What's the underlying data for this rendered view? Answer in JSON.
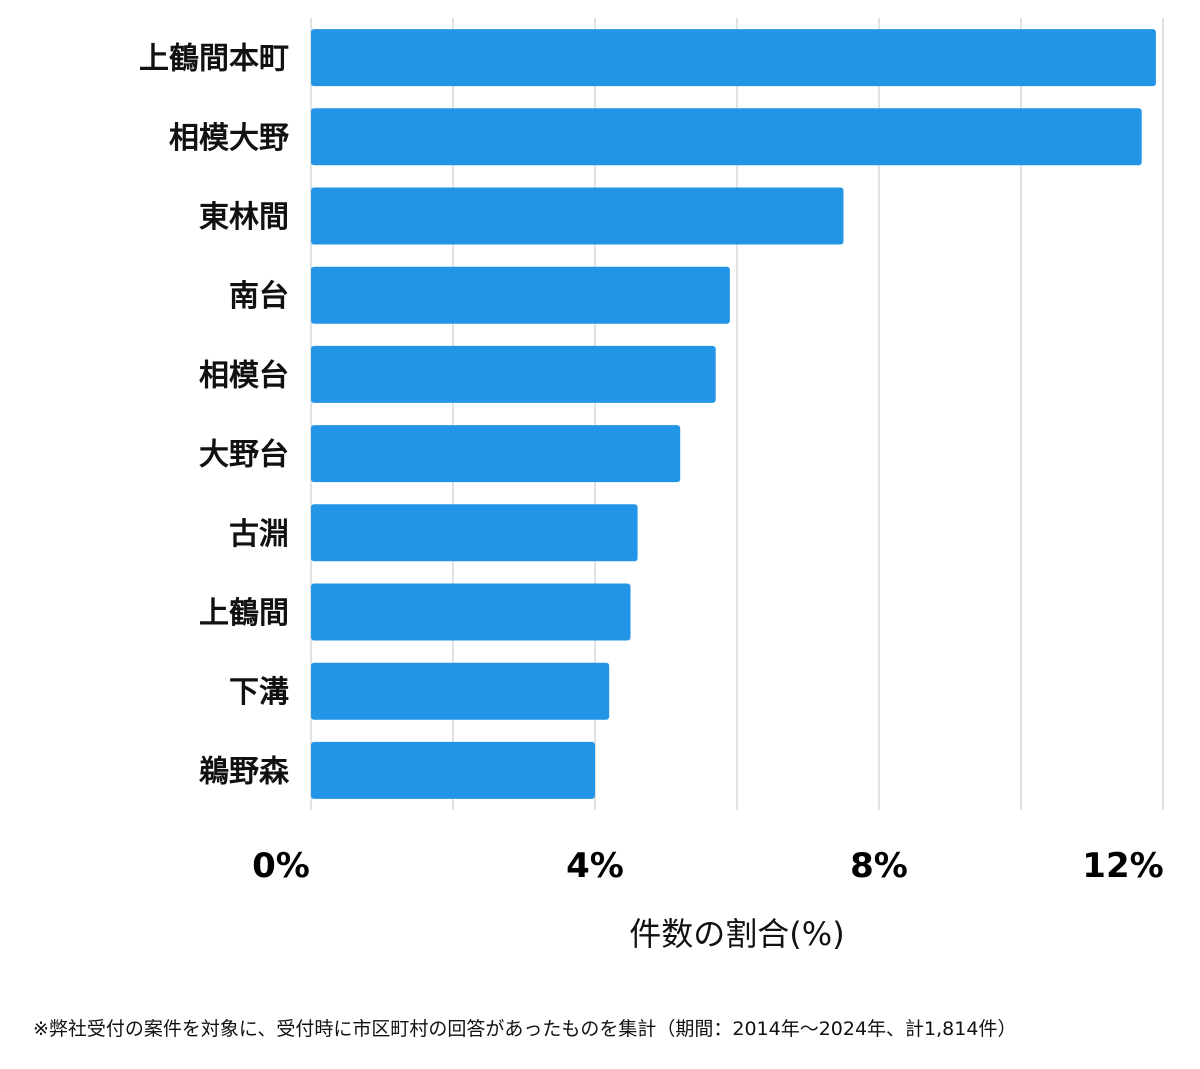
{
  "chart_data": {
    "type": "bar",
    "orientation": "horizontal",
    "categories": [
      "上鶴間本町",
      "相模大野",
      "東林間",
      "南台",
      "相模台",
      "大野台",
      "古淵",
      "上鶴間",
      "下溝",
      "鵜野森"
    ],
    "values": [
      11.9,
      11.7,
      7.5,
      5.9,
      5.7,
      5.2,
      4.6,
      4.5,
      4.2,
      4.0
    ],
    "xlim": [
      0,
      12
    ],
    "xticks": [
      0,
      4,
      8,
      12
    ],
    "xtick_labels": [
      "0%",
      "4%",
      "8%",
      "12%"
    ],
    "xlabel": "件数の割合(%)",
    "grid": "vertical",
    "bar_color": "#2395e6",
    "grid_color": "#d9d9d9"
  },
  "footnote": "※弊社受付の案件を対象に、受付時に市区町村の回答があったものを集計（期間：2014年～2024年、計1,814件）"
}
